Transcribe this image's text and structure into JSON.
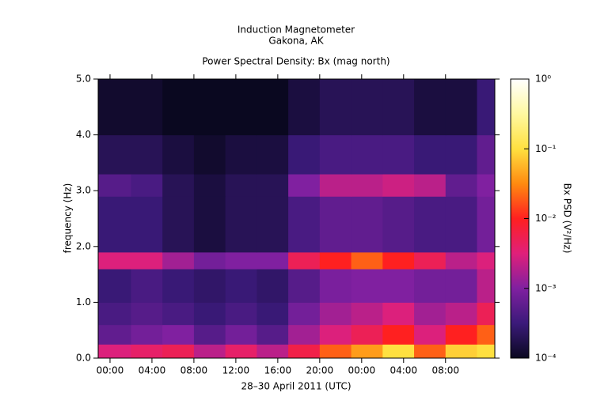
{
  "chart_data": {
    "type": "heatmap",
    "title": "Induction Magnetometer",
    "subtitle": "Gakona, AK",
    "plot_title": "Power Spectral Density: Bx (mag north)",
    "x_label": "28–30 April 2011 (UTC)",
    "y_label": "frequency (Hz)",
    "xlim": [
      -1.13,
      36.7
    ],
    "ylim": [
      0,
      5
    ],
    "xticks": [
      {
        "value": 0,
        "label": "00:00"
      },
      {
        "value": 4,
        "label": "04:00"
      },
      {
        "value": 8,
        "label": "08:00"
      },
      {
        "value": 12,
        "label": "12:00"
      },
      {
        "value": 16,
        "label": "16:00"
      },
      {
        "value": 20,
        "label": "20:00"
      },
      {
        "value": 24,
        "label": "00:00"
      },
      {
        "value": 28,
        "label": "04:00"
      },
      {
        "value": 32,
        "label": "08:00"
      }
    ],
    "yticks": [
      {
        "value": 0,
        "label": "0.0"
      },
      {
        "value": 1,
        "label": "1.0"
      },
      {
        "value": 2,
        "label": "2.0"
      },
      {
        "value": 3,
        "label": "3.0"
      },
      {
        "value": 4,
        "label": "4.0"
      },
      {
        "value": 5,
        "label": "5.0"
      }
    ],
    "x_edges": [
      -1.13,
      2,
      5,
      8,
      11,
      14,
      17,
      20,
      23,
      26,
      29,
      32,
      35,
      36.7
    ],
    "y_edges": [
      0,
      0.25,
      0.6,
      1.0,
      1.6,
      1.9,
      2.9,
      3.3,
      4.0,
      5.0
    ],
    "z": [
      [
        0.003,
        0.004,
        0.005,
        0.002,
        0.004,
        0.002,
        0.006,
        0.02,
        0.04,
        0.1,
        0.02,
        0.08,
        0.1
      ],
      [
        0.0006,
        0.0008,
        0.001,
        0.0005,
        0.0008,
        0.0005,
        0.0015,
        0.003,
        0.005,
        0.01,
        0.003,
        0.01,
        0.02
      ],
      [
        0.0004,
        0.0005,
        0.0004,
        0.0003,
        0.0004,
        0.0003,
        0.0008,
        0.0015,
        0.002,
        0.003,
        0.0015,
        0.002,
        0.005
      ],
      [
        0.0003,
        0.0004,
        0.0003,
        0.00025,
        0.0003,
        0.00025,
        0.0005,
        0.0009,
        0.001,
        0.001,
        0.0008,
        0.0008,
        0.002
      ],
      [
        0.003,
        0.003,
        0.0015,
        0.0008,
        0.001,
        0.001,
        0.005,
        0.01,
        0.02,
        0.01,
        0.005,
        0.002,
        0.003
      ],
      [
        0.0003,
        0.0003,
        0.0002,
        0.00015,
        0.0002,
        0.0002,
        0.0004,
        0.0006,
        0.0006,
        0.0005,
        0.0004,
        0.0004,
        0.0008
      ],
      [
        0.0005,
        0.0004,
        0.0002,
        0.00015,
        0.0002,
        0.0002,
        0.001,
        0.002,
        0.002,
        0.0025,
        0.002,
        0.0006,
        0.001
      ],
      [
        0.0002,
        0.0002,
        0.00015,
        0.00012,
        0.00015,
        0.00015,
        0.0003,
        0.0004,
        0.0004,
        0.0004,
        0.0003,
        0.0003,
        0.0006
      ],
      [
        0.00012,
        0.00012,
        0.0001,
        0.0001,
        0.0001,
        0.0001,
        0.00015,
        0.0002,
        0.0002,
        0.0002,
        0.00015,
        0.00015,
        0.0003
      ]
    ],
    "colorbar": {
      "label": "Bx PSD (V²/Hz)",
      "log": true,
      "lim": [
        0.0001,
        1
      ],
      "ticks": [
        {
          "value": 0.0001,
          "label": "10⁻⁴"
        },
        {
          "value": 0.001,
          "label": "10⁻³"
        },
        {
          "value": 0.01,
          "label": "10⁻²"
        },
        {
          "value": 0.1,
          "label": "10⁻¹"
        },
        {
          "value": 1,
          "label": "10⁰"
        }
      ],
      "colormap": [
        "#0a0820",
        "#3b1a7a",
        "#8020a0",
        "#e0207a",
        "#ff2020",
        "#ff8a10",
        "#ffe040",
        "#fff8a0",
        "#ffffff"
      ]
    }
  }
}
